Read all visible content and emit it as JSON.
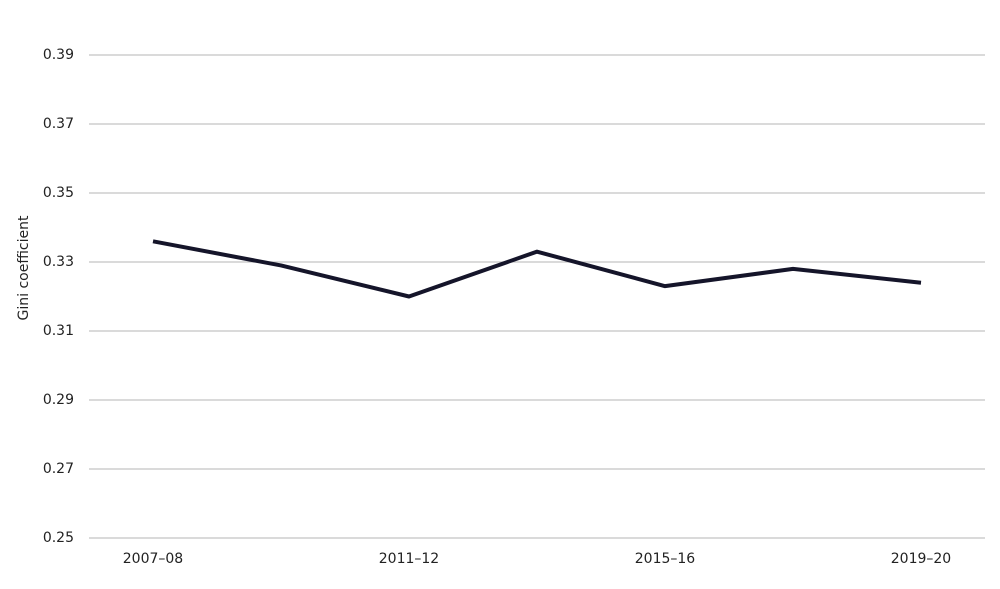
{
  "chart_data": {
    "type": "line",
    "y_label": "Gini coefficient",
    "categories": [
      "2007–08",
      null,
      "2011–12",
      null,
      "2015–16",
      null,
      "2019–20"
    ],
    "series": [
      {
        "name": null,
        "color": "#15152a",
        "values": [
          0.336,
          0.329,
          0.32,
          0.333,
          0.323,
          0.328,
          0.324
        ]
      }
    ],
    "ylim": [
      0.25,
      0.39
    ],
    "yticks": [
      0.25,
      0.27,
      0.29,
      0.31,
      0.33,
      0.35,
      0.37,
      0.39
    ],
    "grid": true
  }
}
